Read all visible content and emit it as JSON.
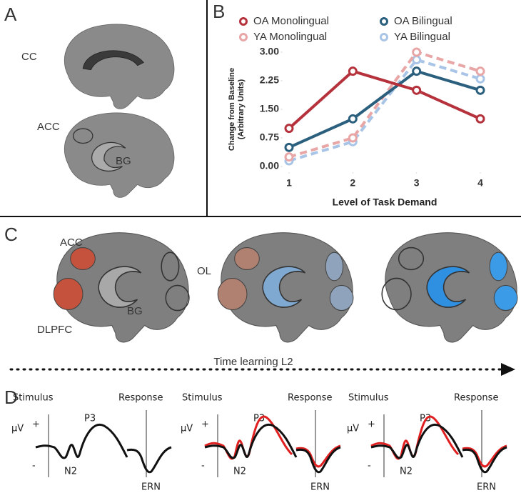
{
  "panels": {
    "a": "A",
    "b": "B",
    "c": "C",
    "d": "D"
  },
  "panel_a": {
    "labels": [
      "CC",
      "ACC",
      "BG"
    ]
  },
  "panel_c": {
    "labels": [
      "ACC",
      "OL",
      "BG",
      "DLPFC"
    ],
    "timeline": "Time learning L2"
  },
  "panel_d": {
    "groups": [
      {
        "stimulus": "Stimulus",
        "response": "Response",
        "unit": "μV",
        "plus": "+",
        "minus": "-",
        "p3": "P3",
        "n2": "N2",
        "ern": "ERN"
      },
      {
        "stimulus": "Stimulus",
        "response": "Response",
        "unit": "μV",
        "plus": "+",
        "minus": "-",
        "p3": "P3",
        "n2": "N2",
        "ern": "ERN"
      },
      {
        "stimulus": "Stimulus",
        "response": "Response",
        "unit": "μV",
        "plus": "+",
        "minus": "-",
        "p3": "P3",
        "n2": "N2",
        "ern": "ERN"
      }
    ]
  },
  "chart_data": {
    "type": "line",
    "x_label": "Level of Task Demand",
    "y_label": [
      "Change from Baseline",
      "(Arbitrary Units)"
    ],
    "x": [
      1,
      2,
      3,
      4
    ],
    "xlim": [
      1,
      4
    ],
    "xticks": [
      1,
      2,
      3,
      4
    ],
    "ylim": [
      0,
      3
    ],
    "yticks": [
      {
        "value": 0,
        "label": "0.00"
      },
      {
        "value": 0.75,
        "label": "0.75"
      },
      {
        "value": 1.5,
        "label": "1.50"
      },
      {
        "value": 2.25,
        "label": "2.25"
      },
      {
        "value": 3,
        "label": "3.00"
      }
    ],
    "series": [
      {
        "name": "OA Monolingual",
        "color": "#b5323c",
        "style": "solid",
        "values": [
          1.0,
          2.5,
          2.0,
          1.25
        ]
      },
      {
        "name": "OA Bilingual",
        "color": "#2b5f7e",
        "style": "solid",
        "values": [
          0.5,
          1.25,
          2.5,
          2.0
        ]
      },
      {
        "name": "YA Monolingual",
        "color": "#e8a6a6",
        "style": "dashed",
        "values": [
          0.25,
          0.75,
          3.0,
          2.5
        ]
      },
      {
        "name": "YA Bilingual",
        "color": "#a8c4e6",
        "style": "dashed",
        "values": [
          0.15,
          0.65,
          2.8,
          2.3
        ]
      }
    ]
  }
}
